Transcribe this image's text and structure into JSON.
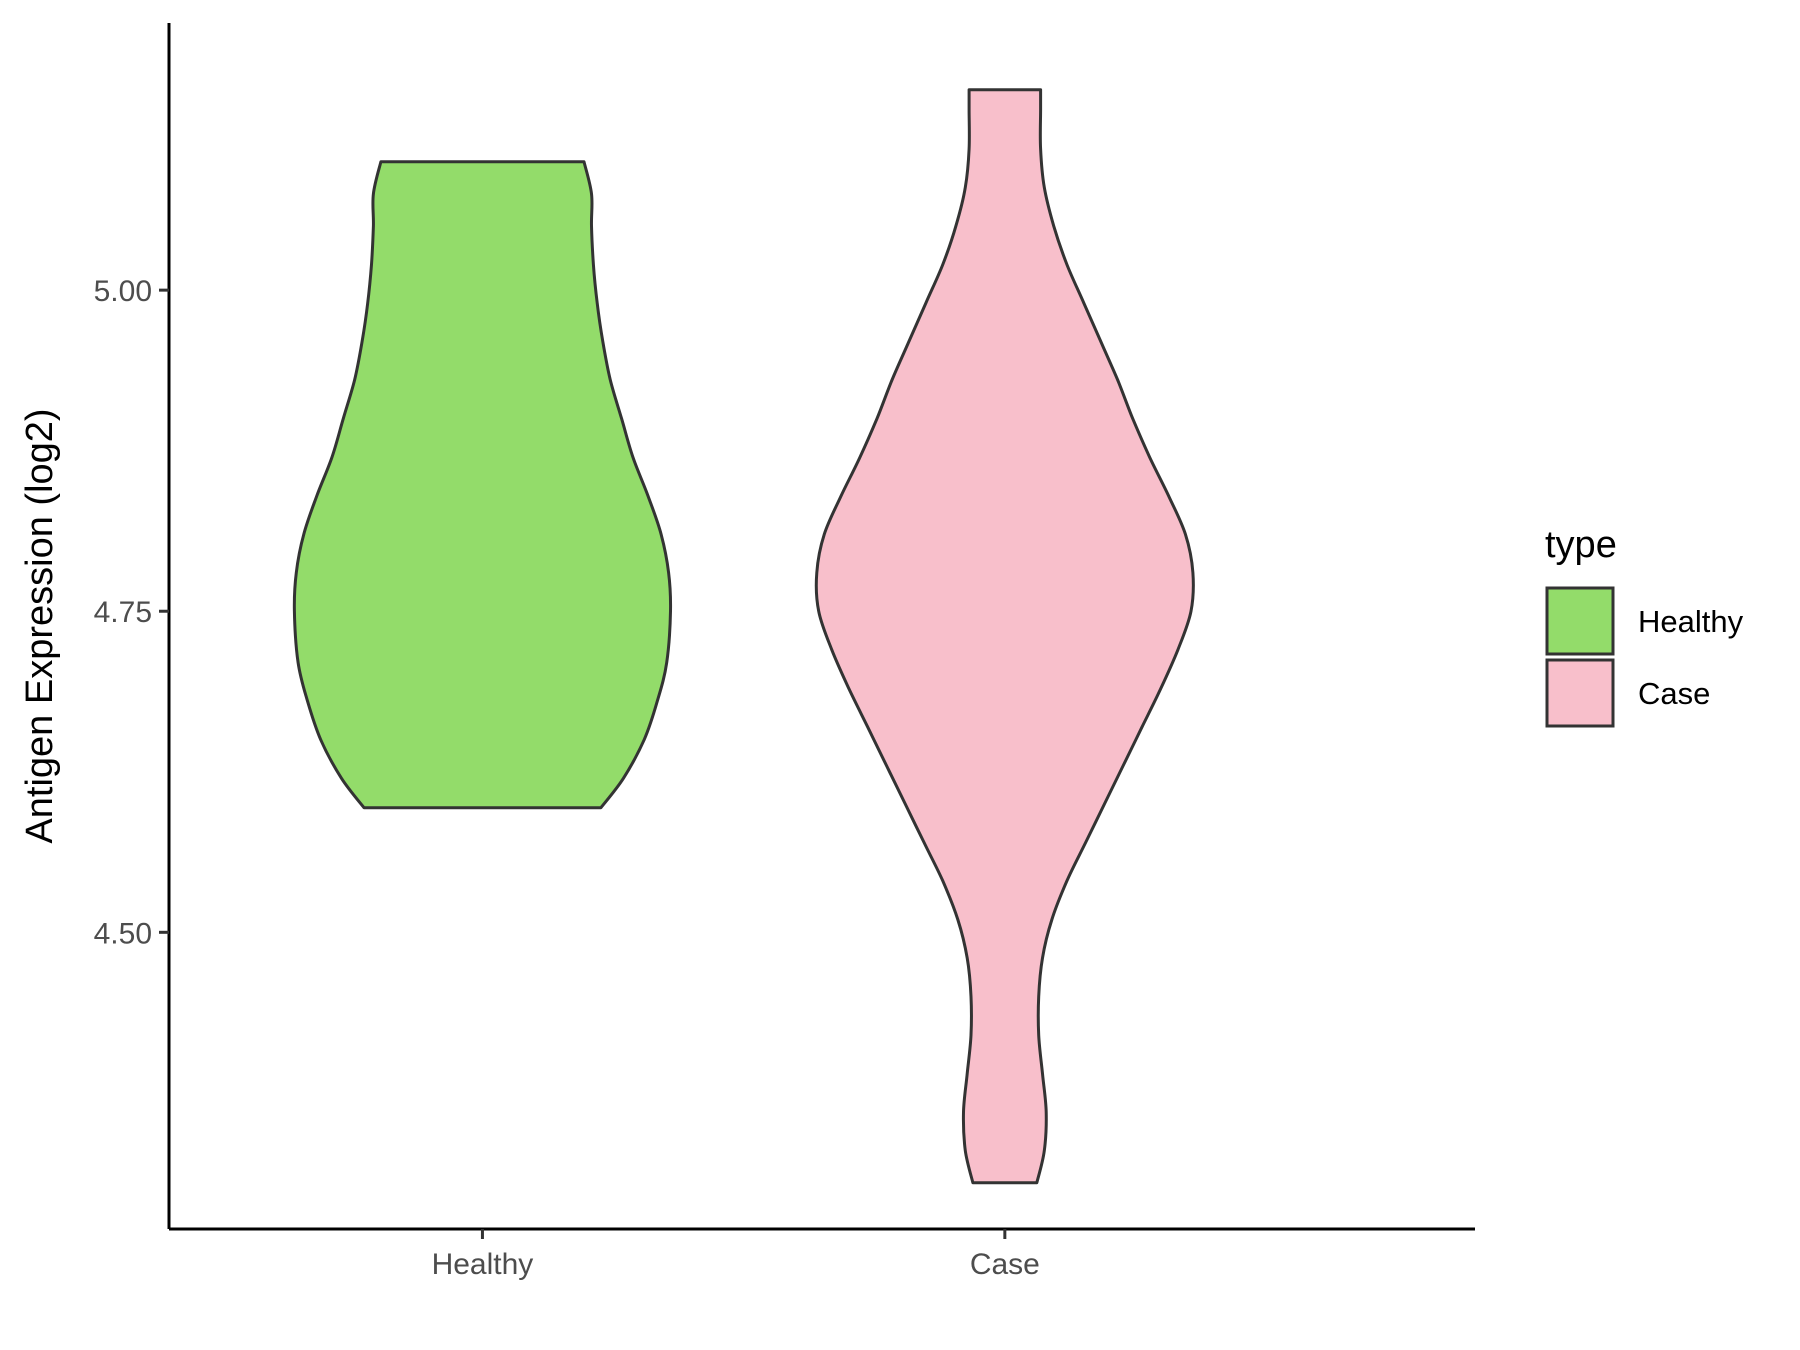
{
  "chart_data": {
    "type": "violin",
    "title": "",
    "xlabel": "",
    "ylabel": "Antigen Expression (log2)",
    "ylim": [
      4.269,
      5.208
    ],
    "yticks": [
      4.5,
      4.75,
      5.0
    ],
    "ytick_labels": [
      "4.50",
      "4.75",
      "5.00"
    ],
    "categories": [
      "Healthy",
      "Case"
    ],
    "legend": {
      "title": "type",
      "position": "right",
      "entries": [
        {
          "label": "Healthy",
          "color": "#93dc6a"
        },
        {
          "label": "Case",
          "color": "#f8bfcb"
        }
      ]
    },
    "grid": false,
    "series": [
      {
        "category": "Healthy",
        "color": "#93dc6a",
        "min": 4.597,
        "max": 5.1,
        "density": [
          [
            4.597,
            0.63
          ],
          [
            4.62,
            0.75
          ],
          [
            4.65,
            0.86
          ],
          [
            4.68,
            0.93
          ],
          [
            4.71,
            0.98
          ],
          [
            4.75,
            1.0
          ],
          [
            4.78,
            0.99
          ],
          [
            4.81,
            0.95
          ],
          [
            4.84,
            0.88
          ],
          [
            4.87,
            0.8
          ],
          [
            4.9,
            0.74
          ],
          [
            4.93,
            0.68
          ],
          [
            4.96,
            0.64
          ],
          [
            4.99,
            0.61
          ],
          [
            5.02,
            0.59
          ],
          [
            5.05,
            0.58
          ],
          [
            5.075,
            0.58
          ],
          [
            5.1,
            0.54
          ]
        ]
      },
      {
        "category": "Case",
        "color": "#f8bfcb",
        "min": 4.305,
        "max": 5.156,
        "density": [
          [
            4.305,
            0.17
          ],
          [
            4.33,
            0.21
          ],
          [
            4.36,
            0.22
          ],
          [
            4.39,
            0.2
          ],
          [
            4.42,
            0.18
          ],
          [
            4.45,
            0.18
          ],
          [
            4.48,
            0.2
          ],
          [
            4.51,
            0.25
          ],
          [
            4.54,
            0.33
          ],
          [
            4.57,
            0.43
          ],
          [
            4.6,
            0.53
          ],
          [
            4.63,
            0.63
          ],
          [
            4.66,
            0.73
          ],
          [
            4.69,
            0.83
          ],
          [
            4.72,
            0.92
          ],
          [
            4.75,
            0.99
          ],
          [
            4.78,
            1.0
          ],
          [
            4.81,
            0.96
          ],
          [
            4.84,
            0.87
          ],
          [
            4.87,
            0.77
          ],
          [
            4.9,
            0.68
          ],
          [
            4.93,
            0.6
          ],
          [
            4.96,
            0.51
          ],
          [
            4.99,
            0.42
          ],
          [
            5.02,
            0.33
          ],
          [
            5.05,
            0.26
          ],
          [
            5.08,
            0.21
          ],
          [
            5.11,
            0.19
          ],
          [
            5.14,
            0.19
          ],
          [
            5.156,
            0.19
          ]
        ]
      }
    ]
  }
}
